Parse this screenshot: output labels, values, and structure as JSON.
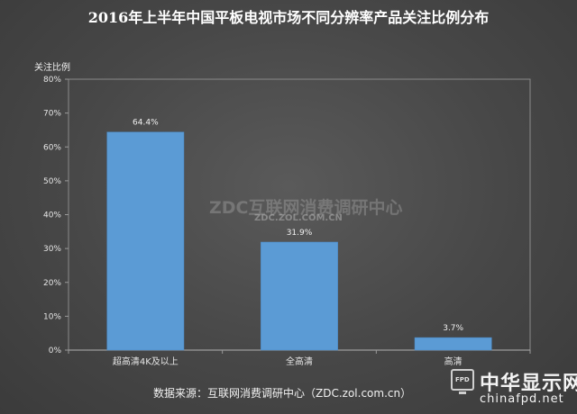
{
  "chart_data": {
    "type": "bar",
    "title": "2016年上半年中国平板电视市场不同分辨率产品关注比例分布",
    "xlabel": "",
    "ylabel": "关注比例",
    "categories": [
      "超高清4K及以上",
      "全高清",
      "高清"
    ],
    "values": [
      64.4,
      31.9,
      3.7
    ],
    "data_labels": [
      "64.4%",
      "31.9%",
      "3.7%"
    ],
    "ylim": [
      0,
      80
    ],
    "yticks": [
      "0%",
      "10%",
      "20%",
      "30%",
      "40%",
      "50%",
      "60%",
      "70%",
      "80%"
    ],
    "grid": false,
    "bar_color": "#5b9bd5"
  },
  "watermark": {
    "main": "ZDC互联网消费调研中心",
    "sub": "ZDC.ZOL.COM.CN"
  },
  "source": "数据来源：互联网消费调研中心（ZDC.zol.com.cn）",
  "logo": {
    "badge": "FPD",
    "name": "中华显示网",
    "url": "chinafpd.net"
  }
}
